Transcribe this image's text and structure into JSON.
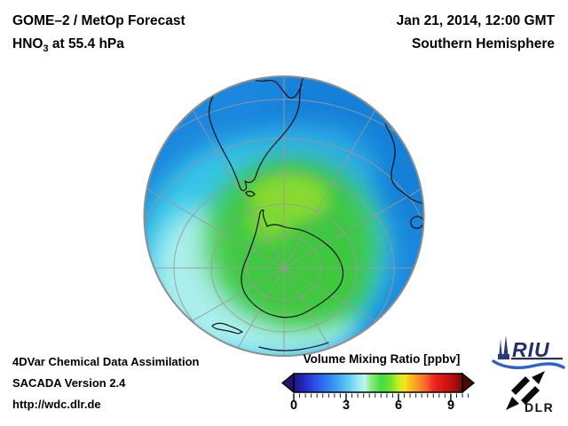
{
  "header": {
    "product": "GOME–2 / MetOp Forecast",
    "species_prefix": "HNO",
    "species_sub": "3",
    "species_suffix": " at 55.4 hPa",
    "datetime": "Jan 21, 2014, 12:00 GMT",
    "region": "Southern Hemisphere"
  },
  "colorbar": {
    "title": "Volume Mixing Ratio [ppbv]",
    "ticks": [
      "0",
      "3",
      "6",
      "9"
    ],
    "range_min": 0,
    "range_max": 10,
    "unit": "ppbv",
    "palette_low_to_high": [
      "#1b1685",
      "#2a52e8",
      "#44aaf2",
      "#98e8f0",
      "#c0f4ee",
      "#44dc40",
      "#c8ee22",
      "#f8e414",
      "#f8882a",
      "#f02820",
      "#b80f0f",
      "#700b0b"
    ]
  },
  "footer": {
    "line1": "4DVar Chemical Data Assimilation",
    "line2": "SACADA Version 2.4",
    "line3": "http://wdc.dlr.de"
  },
  "logos": {
    "riu": "RIU",
    "dlr": "DLR"
  },
  "globe": {
    "visible_landmasses": [
      "South America",
      "Antarctica",
      "Australia",
      "Tasmania",
      "New Zealand"
    ],
    "field_description": "HNO3 volume mixing ratio: blue (~1-2 ppbv) at low latitudes, cyan/pale-cyan ring (~3 ppbv), green to yellow-green maximum (~4-5.5 ppbv) over Antarctica"
  }
}
